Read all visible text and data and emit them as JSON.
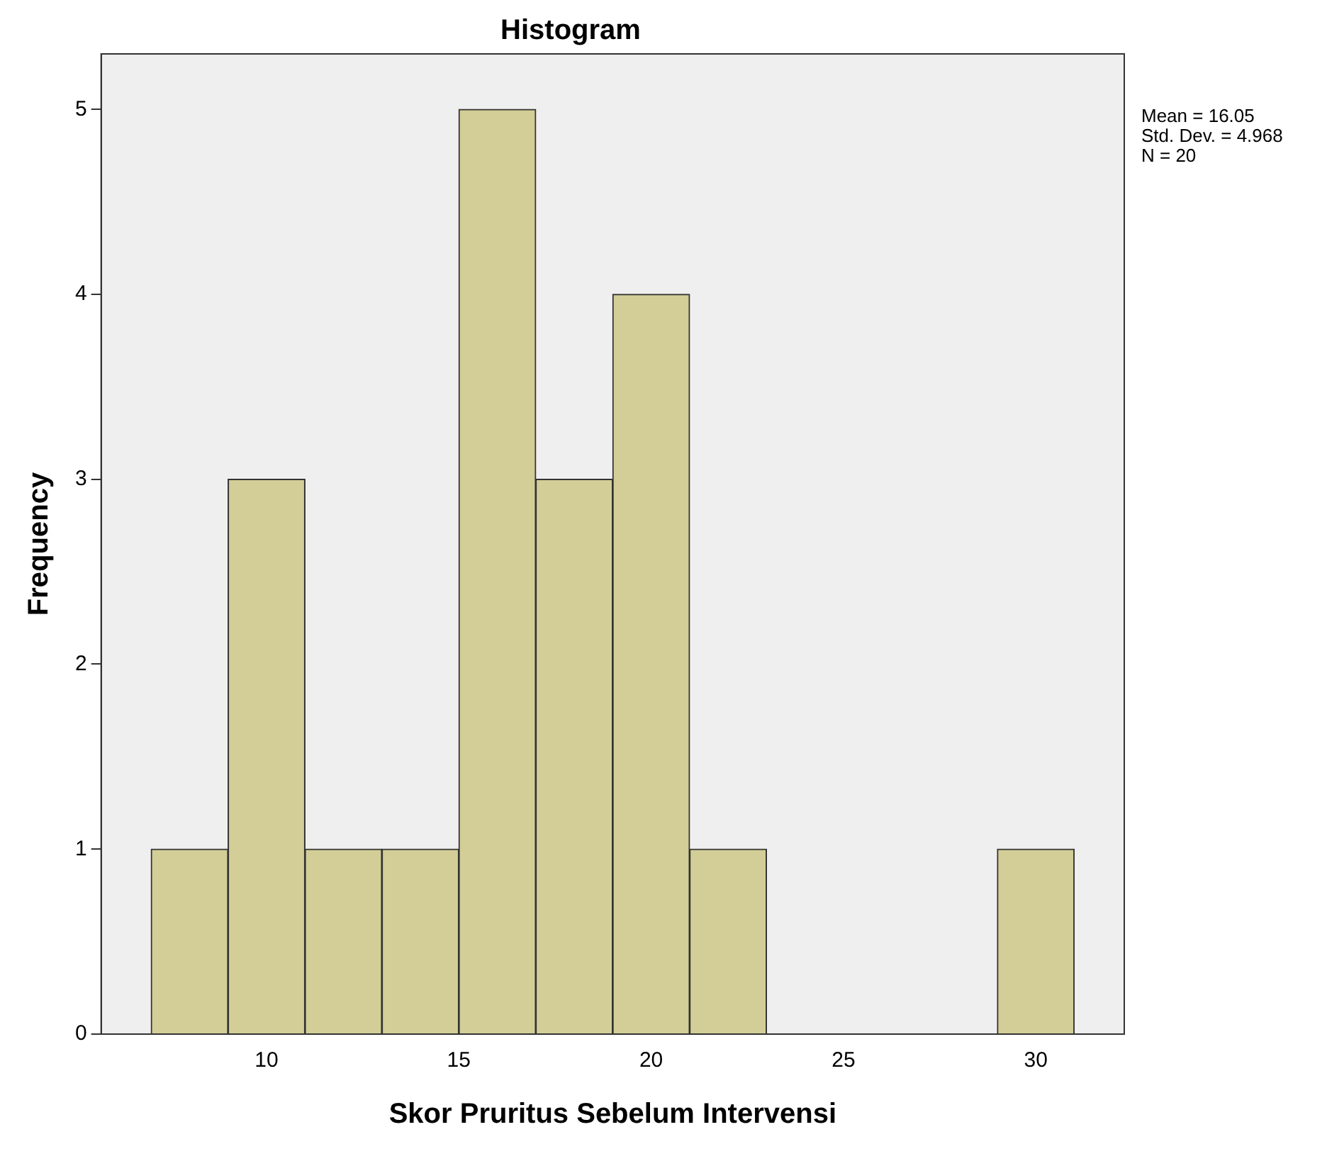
{
  "chart_data": {
    "type": "histogram",
    "title": "Histogram",
    "xlabel": "Skor Pruritus Sebelum Intervensi",
    "ylabel": "Frequency",
    "bins": [
      7,
      9,
      11,
      13,
      15,
      17,
      19,
      21,
      23,
      25,
      27,
      29,
      31
    ],
    "values": [
      1,
      3,
      1,
      1,
      5,
      3,
      4,
      1,
      0,
      0,
      0,
      1
    ],
    "color": "#d3ce97",
    "xlim": [
      5.7,
      32.3
    ],
    "xticks": [
      10,
      15,
      20,
      25,
      30
    ],
    "ylim": [
      0,
      5.3
    ],
    "yticks": [
      0,
      1,
      2,
      3,
      4,
      5
    ],
    "grid": false,
    "legend": false,
    "annotations": [
      "Mean = 16.05",
      "Std. Dev. = 4.968",
      "N = 20"
    ]
  }
}
